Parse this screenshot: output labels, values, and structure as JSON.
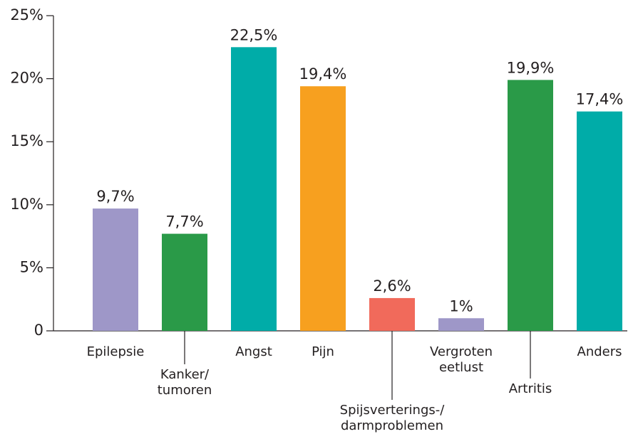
{
  "chart_data": {
    "type": "bar",
    "categories": [
      "Epilepsie",
      "Kanker/\ntumoren",
      "Angst",
      "Pijn",
      "Spijsverterings-/\ndarmproblemen",
      "Vergroten\neetlust",
      "Artritis",
      "Anders"
    ],
    "values": [
      9.7,
      7.7,
      22.5,
      19.4,
      2.6,
      1,
      19.9,
      17.4
    ],
    "value_labels": [
      "9,7%",
      "7,7%",
      "22,5%",
      "19,4%",
      "2,6%",
      "1%",
      "19,9%",
      "17,4%"
    ],
    "colors": [
      "#9e97c8",
      "#2a9a48",
      "#00aca8",
      "#f7a01f",
      "#f16a5b",
      "#9e97c8",
      "#2a9a48",
      "#00aca8"
    ],
    "ylim": [
      0,
      25
    ],
    "yticks": [
      0,
      {
        "value": 5,
        "label": "5%"
      },
      {
        "value": 10,
        "label": "10%"
      },
      {
        "value": 15,
        "label": "15%"
      },
      {
        "value": 20,
        "label": "20%"
      },
      {
        "value": 25,
        "label": "25%"
      }
    ],
    "grid": false
  }
}
